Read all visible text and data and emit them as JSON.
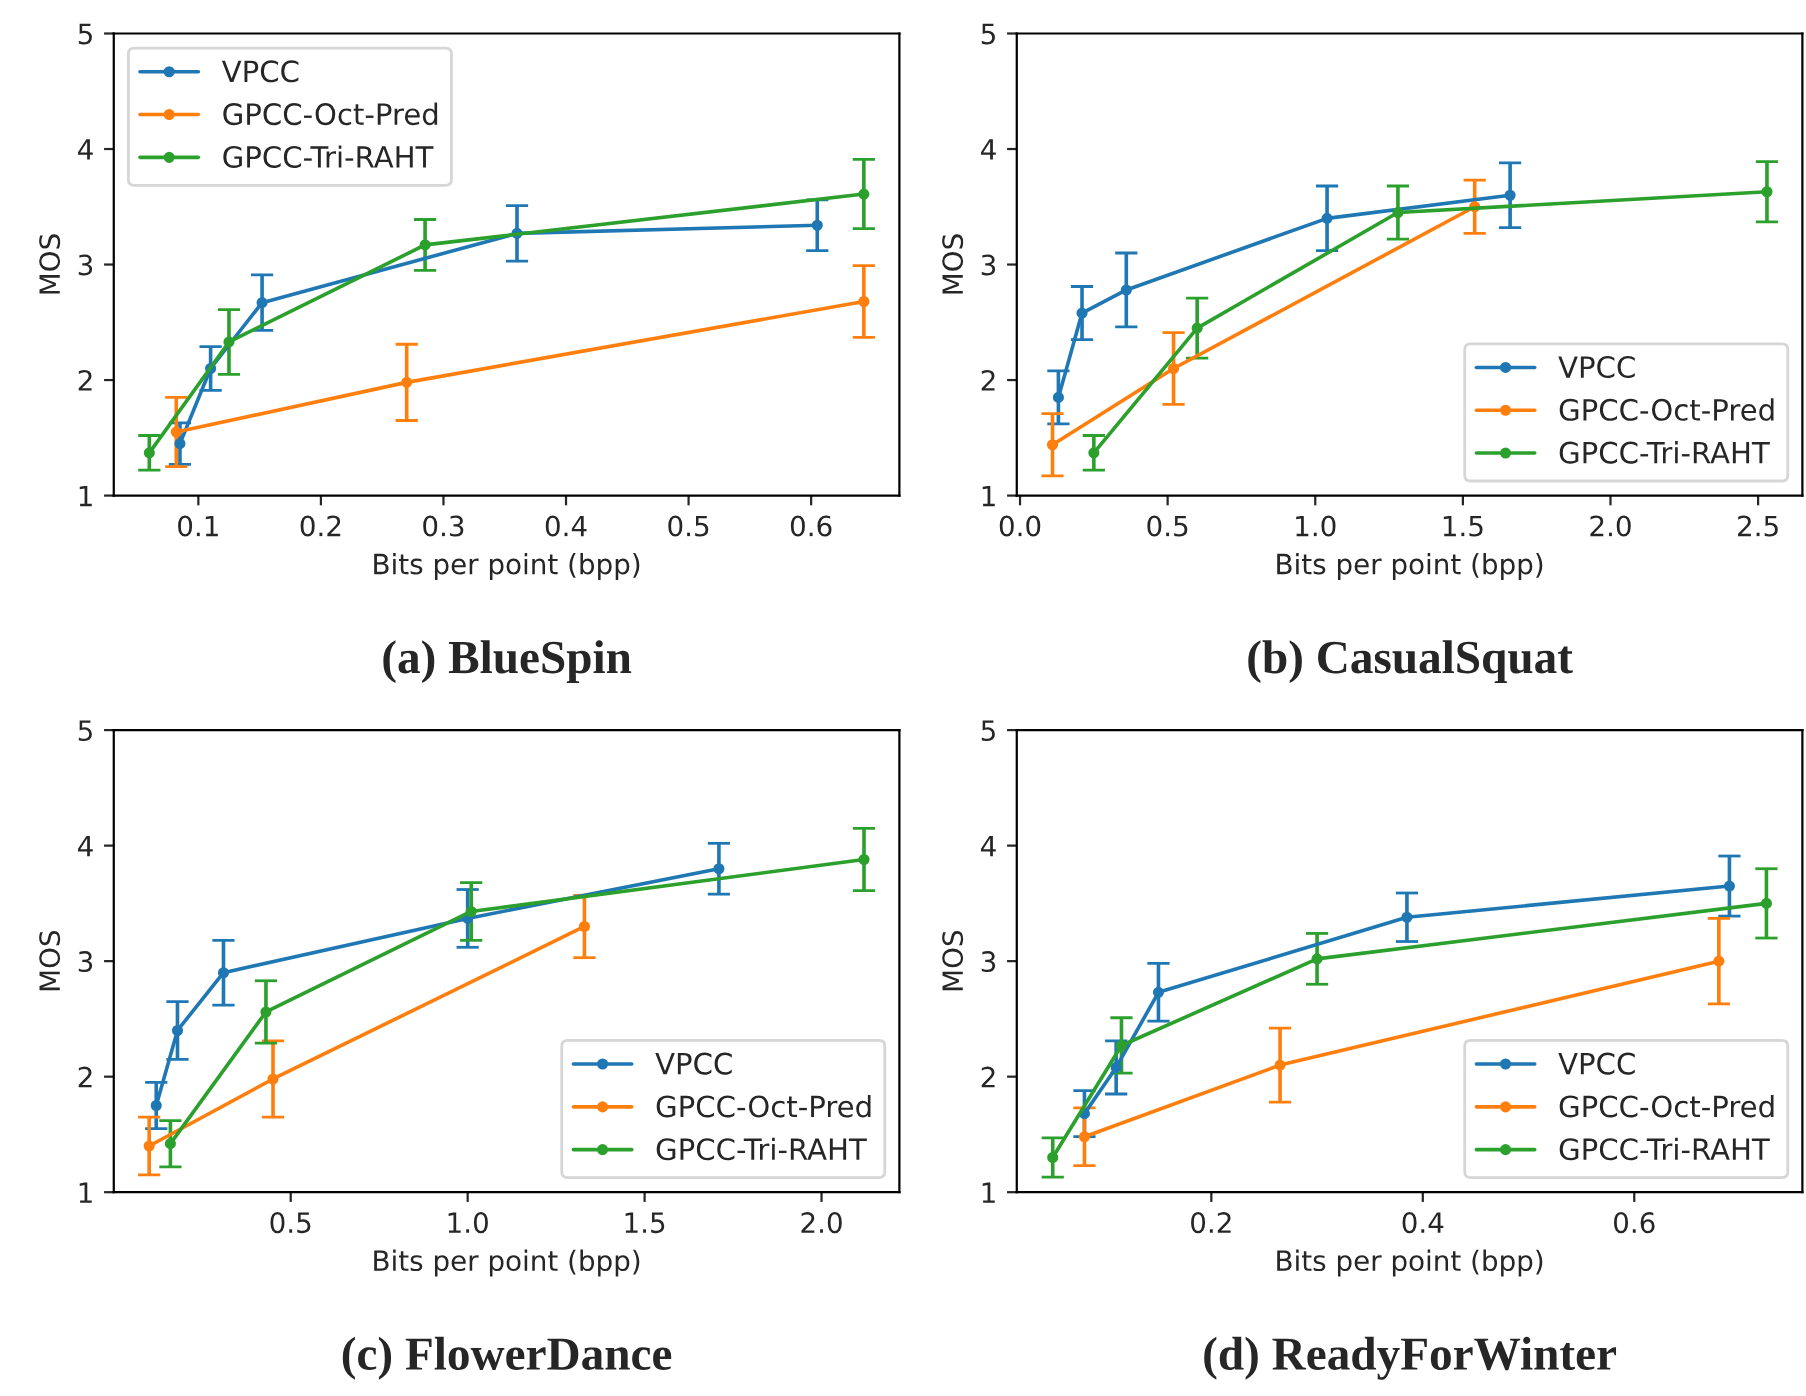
{
  "chart_data": [
    {
      "type": "line",
      "title": "(a) BlueSpin",
      "xlabel": "Bits per point (bpp)",
      "ylabel": "MOS",
      "xlim": [
        0.031,
        0.672
      ],
      "xticks": [
        0.1,
        0.2,
        0.3,
        0.4,
        0.5,
        0.6
      ],
      "ylim": [
        1,
        5
      ],
      "yticks": [
        1,
        2,
        3,
        4,
        5
      ],
      "grid": false,
      "legend": "top left",
      "marker": "circle",
      "line_style": "solid",
      "series": [
        {
          "name": "VPCC",
          "color": "#1f77b4",
          "x": [
            0.085,
            0.11,
            0.152,
            0.36,
            0.605
          ],
          "values": [
            1.45,
            2.1,
            2.67,
            3.27,
            3.34
          ],
          "errors": [
            0.18,
            0.19,
            0.24,
            0.24,
            0.22
          ]
        },
        {
          "name": "GPCC-Oct-Pred",
          "color": "#ff7f0e",
          "x": [
            0.082,
            0.27,
            0.643
          ],
          "values": [
            1.55,
            1.98,
            2.68
          ],
          "errors": [
            0.3,
            0.33,
            0.31
          ]
        },
        {
          "name": "GPCC-Tri-RAHT",
          "color": "#2ca02c",
          "x": [
            0.06,
            0.125,
            0.285,
            0.643
          ],
          "values": [
            1.37,
            2.33,
            3.17,
            3.61
          ],
          "errors": [
            0.15,
            0.28,
            0.22,
            0.3
          ]
        }
      ]
    },
    {
      "type": "line",
      "title": "(b) CasualSquat",
      "xlabel": "Bits per point (bpp)",
      "ylabel": "MOS",
      "xlim": [
        -0.011,
        2.65
      ],
      "xticks": [
        {
          "value": 0,
          "label": "0.0"
        },
        0.5,
        {
          "value": 1,
          "label": "1.0"
        },
        1.5,
        {
          "value": 2,
          "label": "2.0"
        },
        2.5
      ],
      "ylim": [
        1,
        5
      ],
      "yticks": [
        1,
        2,
        3,
        4,
        5
      ],
      "grid": false,
      "legend": "bottom right",
      "marker": "circle",
      "line_style": "solid",
      "series": [
        {
          "name": "VPCC",
          "color": "#1f77b4",
          "x": [
            0.13,
            0.21,
            0.36,
            1.04,
            1.66
          ],
          "values": [
            1.85,
            2.58,
            2.78,
            3.4,
            3.6
          ],
          "errors": [
            0.23,
            0.23,
            0.32,
            0.28,
            0.28
          ]
        },
        {
          "name": "GPCC-Oct-Pred",
          "color": "#ff7f0e",
          "x": [
            0.11,
            0.52,
            1.54
          ],
          "values": [
            1.44,
            2.1,
            3.5
          ],
          "errors": [
            0.27,
            0.31,
            0.23
          ]
        },
        {
          "name": "GPCC-Tri-RAHT",
          "color": "#2ca02c",
          "x": [
            0.25,
            0.6,
            1.28,
            2.53
          ],
          "values": [
            1.37,
            2.45,
            3.45,
            3.63
          ],
          "errors": [
            0.15,
            0.26,
            0.23,
            0.26
          ]
        }
      ]
    },
    {
      "type": "line",
      "title": "(c) FlowerDance",
      "xlabel": "Bits per point (bpp)",
      "ylabel": "MOS",
      "xlim": [
        0.0,
        2.22
      ],
      "xticks": [
        0.5,
        {
          "value": 1,
          "label": "1.0"
        },
        1.5,
        {
          "value": 2,
          "label": "2.0"
        }
      ],
      "ylim": [
        1,
        5
      ],
      "yticks": [
        1,
        2,
        3,
        4,
        5
      ],
      "grid": false,
      "legend": "bottom right",
      "marker": "circle",
      "line_style": "solid",
      "series": [
        {
          "name": "VPCC",
          "color": "#1f77b4",
          "x": [
            0.12,
            0.18,
            0.31,
            1.0,
            1.71
          ],
          "values": [
            1.75,
            2.4,
            2.9,
            3.37,
            3.8
          ],
          "errors": [
            0.2,
            0.25,
            0.28,
            0.25,
            0.22
          ]
        },
        {
          "name": "GPCC-Oct-Pred",
          "color": "#ff7f0e",
          "x": [
            0.1,
            0.45,
            1.33
          ],
          "values": [
            1.4,
            1.98,
            3.3
          ],
          "errors": [
            0.25,
            0.33,
            0.27
          ]
        },
        {
          "name": "GPCC-Tri-RAHT",
          "color": "#2ca02c",
          "x": [
            0.16,
            0.43,
            1.01,
            2.12
          ],
          "values": [
            1.42,
            2.56,
            3.43,
            3.88
          ],
          "errors": [
            0.2,
            0.27,
            0.25,
            0.27
          ]
        }
      ]
    },
    {
      "type": "line",
      "title": "(d) ReadyForWinter",
      "xlabel": "Bits per point (bpp)",
      "ylabel": "MOS",
      "xlim": [
        0.016,
        0.759
      ],
      "xticks": [
        0.2,
        0.4,
        0.6
      ],
      "ylim": [
        1,
        5
      ],
      "yticks": [
        1,
        2,
        3,
        4,
        5
      ],
      "grid": false,
      "legend": "bottom right",
      "marker": "circle",
      "line_style": "solid",
      "series": [
        {
          "name": "VPCC",
          "color": "#1f77b4",
          "x": [
            0.08,
            0.11,
            0.15,
            0.385,
            0.69
          ],
          "values": [
            1.68,
            2.08,
            2.73,
            3.38,
            3.65
          ],
          "errors": [
            0.2,
            0.23,
            0.25,
            0.21,
            0.26
          ]
        },
        {
          "name": "GPCC-Oct-Pred",
          "color": "#ff7f0e",
          "x": [
            0.08,
            0.265,
            0.68
          ],
          "values": [
            1.48,
            2.1,
            3.0
          ],
          "errors": [
            0.25,
            0.32,
            0.37
          ]
        },
        {
          "name": "GPCC-Tri-RAHT",
          "color": "#2ca02c",
          "x": [
            0.05,
            0.115,
            0.3,
            0.725
          ],
          "values": [
            1.3,
            2.27,
            3.02,
            3.5
          ],
          "errors": [
            0.17,
            0.24,
            0.22,
            0.3
          ]
        }
      ]
    }
  ]
}
